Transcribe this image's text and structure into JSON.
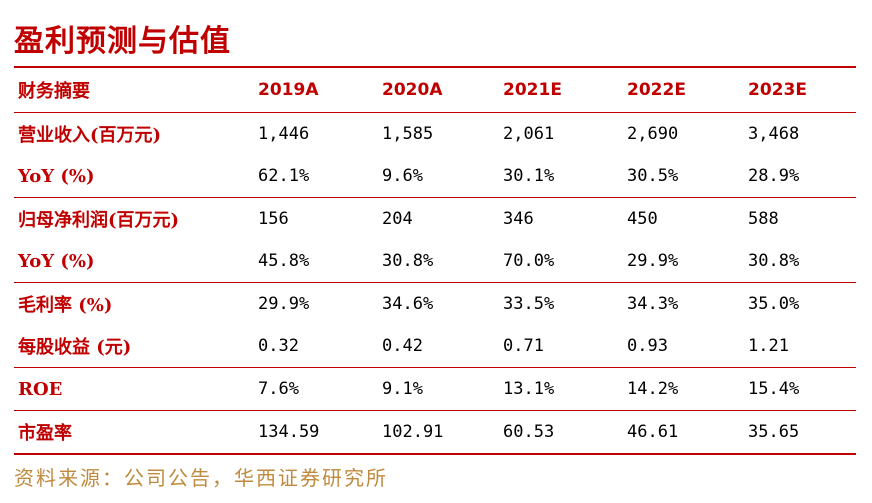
{
  "title": "盈利预测与估值",
  "table": {
    "header": [
      "财务摘要",
      "2019A",
      "2020A",
      "2021E",
      "2022E",
      "2023E"
    ],
    "groups": [
      [
        {
          "label": "营业收入(百万元)",
          "values": [
            "1,446",
            "1,585",
            "2,061",
            "2,690",
            "3,468"
          ]
        },
        {
          "label": "YoY (%)",
          "values": [
            "62.1%",
            "9.6%",
            "30.1%",
            "30.5%",
            "28.9%"
          ]
        }
      ],
      [
        {
          "label": "归母净利润(百万元)",
          "values": [
            "156",
            "204",
            "346",
            "450",
            "588"
          ]
        },
        {
          "label": "YoY (%)",
          "values": [
            "45.8%",
            "30.8%",
            "70.0%",
            "29.9%",
            "30.8%"
          ]
        }
      ],
      [
        {
          "label": "毛利率 (%)",
          "values": [
            "29.9%",
            "34.6%",
            "33.5%",
            "34.3%",
            "35.0%"
          ]
        },
        {
          "label": "每股收益 (元)",
          "values": [
            "0.32",
            "0.42",
            "0.71",
            "0.93",
            "1.21"
          ]
        }
      ],
      [
        {
          "label": "ROE",
          "values": [
            "7.6%",
            "9.1%",
            "13.1%",
            "14.2%",
            "15.4%"
          ]
        }
      ],
      [
        {
          "label": "市盈率",
          "values": [
            "134.59",
            "102.91",
            "60.53",
            "46.61",
            "35.65"
          ]
        }
      ]
    ]
  },
  "source": "资料来源：公司公告，华西证券研究所",
  "colors": {
    "accent": "#c00000",
    "source": "#c08a3e"
  }
}
